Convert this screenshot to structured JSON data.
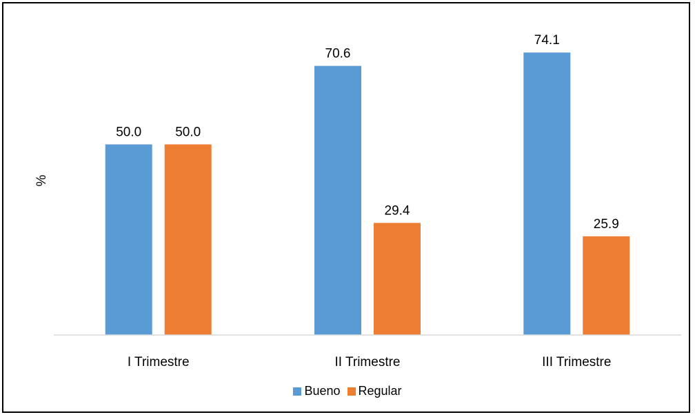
{
  "chart_data": {
    "type": "bar",
    "title": "",
    "xlabel": "",
    "ylabel": "%",
    "ylim": [
      0,
      80
    ],
    "grid": false,
    "legend_position": "bottom",
    "categories": [
      "I Trimestre",
      "II Trimestre",
      "III Trimestre"
    ],
    "series": [
      {
        "name": "Bueno",
        "color": "#5B9BD5",
        "values": [
          50.0,
          70.6,
          74.1
        ],
        "labels": [
          "50.0",
          "70.6",
          "74.1"
        ]
      },
      {
        "name": "Regular",
        "color": "#ED7D31",
        "values": [
          50.0,
          29.4,
          25.9
        ],
        "labels": [
          "50.0",
          "29.4",
          "25.9"
        ]
      }
    ]
  }
}
